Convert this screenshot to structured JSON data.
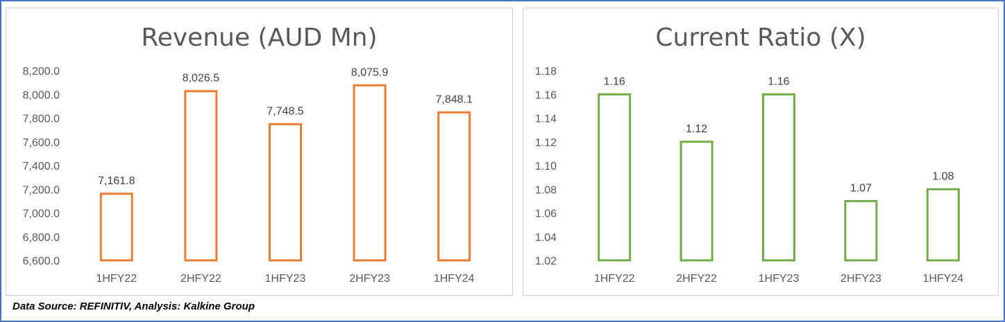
{
  "colors": {
    "revenue_bar": "#ed7d31",
    "ratio_bar": "#70ad47",
    "frame": "#4472c4"
  },
  "chart_data": [
    {
      "type": "bar",
      "title": "Revenue (AUD Mn)",
      "categories": [
        "1HFY22",
        "2HFY22",
        "1HFY23",
        "2HFY23",
        "1HFY24"
      ],
      "values": [
        7161.8,
        8026.5,
        7748.5,
        8075.9,
        7848.1
      ],
      "value_labels": [
        "7,161.8",
        "8,026.5",
        "7,748.5",
        "8,075.9",
        "7,848.1"
      ],
      "ylim": [
        6600,
        8200
      ],
      "yticks": [
        6600,
        6800,
        7000,
        7200,
        7400,
        7600,
        7800,
        8000,
        8200
      ],
      "ytick_labels": [
        "6,600.0",
        "6,800.0",
        "7,000.0",
        "7,200.0",
        "7,400.0",
        "7,600.0",
        "7,800.0",
        "8,000.0",
        "8,200.0"
      ],
      "xlabel": "",
      "ylabel": "",
      "grid": false,
      "legend": "none",
      "bar_style": "outline",
      "color": "#ed7d31"
    },
    {
      "type": "bar",
      "title": "Current Ratio (X)",
      "categories": [
        "1HFY22",
        "2HFY22",
        "1HFY23",
        "2HFY23",
        "1HFY24"
      ],
      "values": [
        1.16,
        1.12,
        1.16,
        1.07,
        1.08
      ],
      "value_labels": [
        "1.16",
        "1.12",
        "1.16",
        "1.07",
        "1.08"
      ],
      "ylim": [
        1.02,
        1.18
      ],
      "yticks": [
        1.02,
        1.04,
        1.06,
        1.08,
        1.1,
        1.12,
        1.14,
        1.16,
        1.18
      ],
      "ytick_labels": [
        "1.02",
        "1.04",
        "1.06",
        "1.08",
        "1.10",
        "1.12",
        "1.14",
        "1.16",
        "1.18"
      ],
      "xlabel": "",
      "ylabel": "",
      "grid": false,
      "legend": "none",
      "bar_style": "outline",
      "color": "#70ad47"
    }
  ],
  "footer": {
    "source_text": "Data Source: REFINITIV, Analysis: Kalkine Group"
  }
}
